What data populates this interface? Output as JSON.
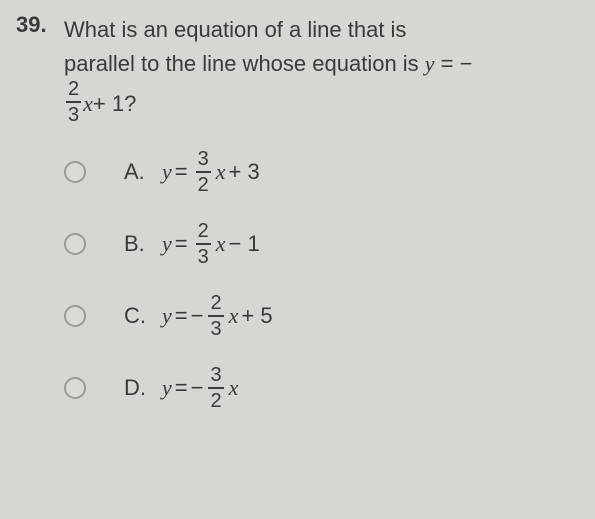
{
  "question": {
    "number": "39.",
    "line1": "What is an equation of a line that is",
    "line2_before": "parallel to the line whose equation is ",
    "line2_eq_lhs": "y",
    "line2_eq_equals": " = −",
    "line3_frac_num": "2",
    "line3_frac_den": "3",
    "line3_var": "x",
    "line3_tail": " + 1?"
  },
  "choices": [
    {
      "letter": "A.",
      "lhs": "y",
      "eq": " = ",
      "neg": "",
      "num": "3",
      "den": "2",
      "var": "x",
      "tail": " + 3"
    },
    {
      "letter": "B.",
      "lhs": "y",
      "eq": " = ",
      "neg": "",
      "num": "2",
      "den": "3",
      "var": "x",
      "tail": " − 1"
    },
    {
      "letter": "C.",
      "lhs": "y",
      "eq": " = ",
      "neg": "−",
      "num": "2",
      "den": "3",
      "var": "x",
      "tail": " + 5"
    },
    {
      "letter": "D.",
      "lhs": "y",
      "eq": " = ",
      "neg": "−",
      "num": "3",
      "den": "2",
      "var": "x",
      "tail": ""
    }
  ]
}
